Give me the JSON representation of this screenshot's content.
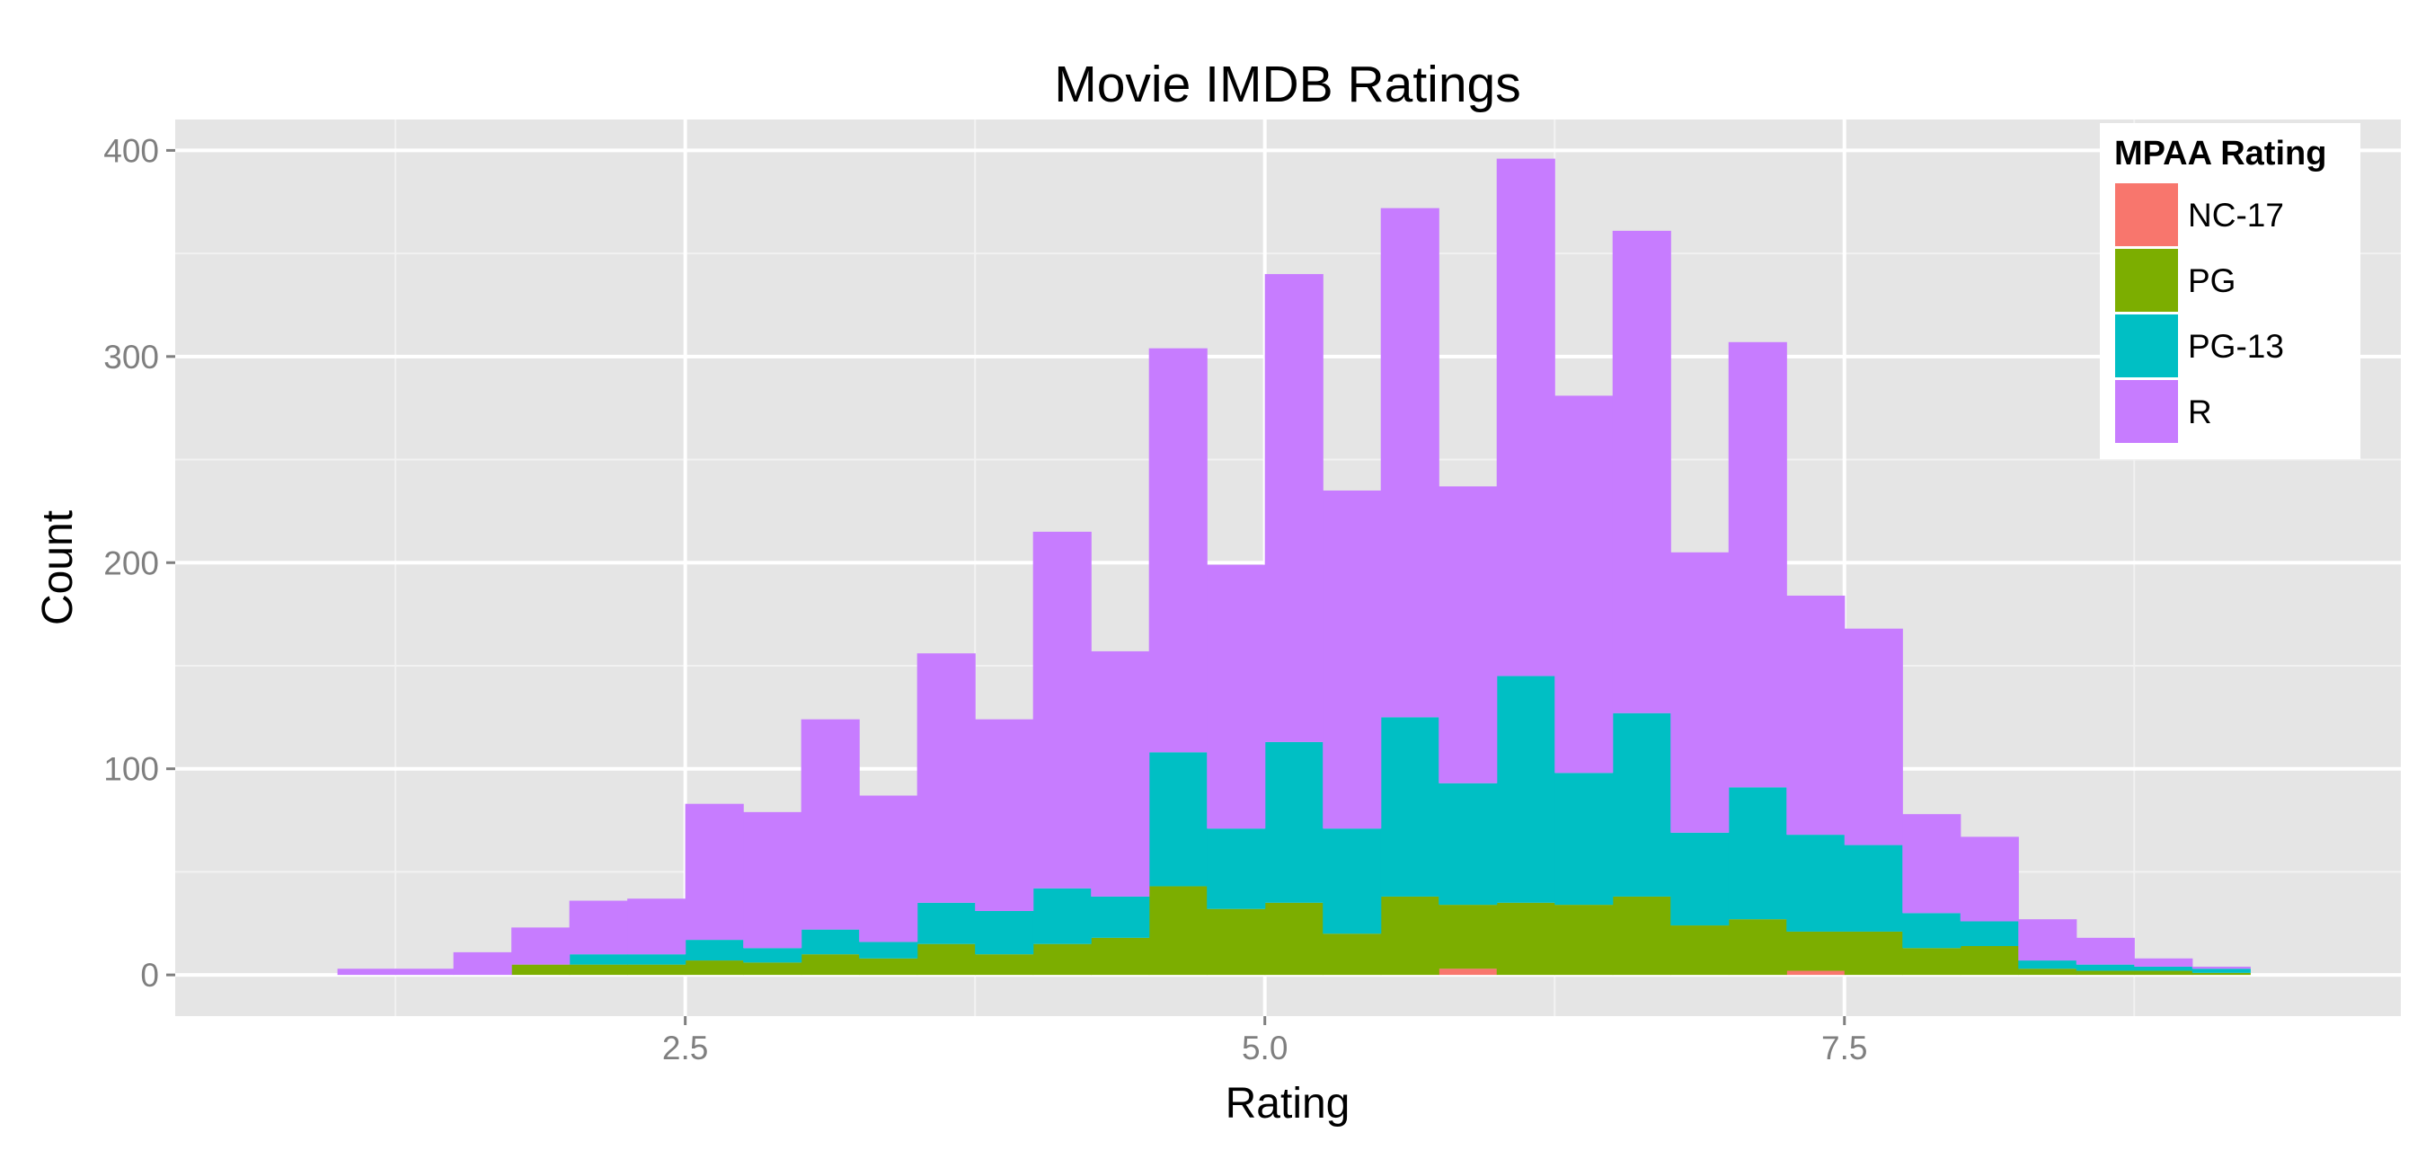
{
  "chart_data": {
    "type": "bar",
    "stacked": true,
    "title": "Movie IMDB Ratings",
    "xlabel": "Rating",
    "ylabel": "Count",
    "xlim": [
      0.3,
      9.9
    ],
    "ylim": [
      -20,
      415
    ],
    "xticks": [
      2.5,
      5.0,
      7.5
    ],
    "xtick_labels": [
      "2.5",
      "5.0",
      "7.5"
    ],
    "yticks": [
      0,
      100,
      200,
      300,
      400
    ],
    "ytick_labels": [
      "0",
      "100",
      "200",
      "300",
      "400"
    ],
    "grid": true,
    "background": "#E5E5E5",
    "legend": {
      "title": "MPAA Rating",
      "position": "top-right"
    },
    "bin_width": 0.25,
    "bin_starts": [
      1.0,
      1.25,
      1.5,
      1.75,
      2.0,
      2.25,
      2.5,
      2.75,
      3.0,
      3.25,
      3.5,
      3.75,
      4.0,
      4.25,
      4.5,
      4.75,
      5.0,
      5.25,
      5.5,
      5.75,
      6.0,
      6.25,
      6.5,
      6.75,
      7.0,
      7.25,
      7.5,
      7.75,
      8.0,
      8.25,
      8.5,
      8.75,
      9.0
    ],
    "series": [
      {
        "name": "NC-17",
        "color": "#F8766D",
        "values": [
          0,
          0,
          0,
          0,
          0,
          0,
          0,
          0,
          0,
          0,
          0,
          0,
          0,
          0,
          0,
          0,
          0,
          0,
          0,
          3,
          0,
          0,
          0,
          0,
          0,
          2,
          0,
          0,
          0,
          0,
          0,
          0,
          0
        ]
      },
      {
        "name": "PG",
        "color": "#7CAE00",
        "values": [
          0,
          0,
          0,
          5,
          5,
          5,
          7,
          6,
          10,
          8,
          15,
          10,
          15,
          18,
          43,
          32,
          35,
          20,
          38,
          31,
          35,
          34,
          38,
          24,
          27,
          19,
          21,
          13,
          14,
          3,
          2,
          2,
          1
        ]
      },
      {
        "name": "PG-13",
        "color": "#00BFC4",
        "values": [
          0,
          0,
          0,
          0,
          5,
          5,
          10,
          7,
          12,
          8,
          20,
          21,
          27,
          20,
          65,
          39,
          78,
          51,
          87,
          59,
          110,
          64,
          89,
          45,
          64,
          47,
          42,
          17,
          12,
          4,
          3,
          2,
          2
        ]
      },
      {
        "name": "R",
        "color": "#C77CFF",
        "values": [
          3,
          3,
          11,
          18,
          26,
          27,
          66,
          66,
          102,
          71,
          121,
          93,
          173,
          119,
          196,
          128,
          227,
          164,
          247,
          144,
          251,
          183,
          234,
          136,
          216,
          116,
          105,
          48,
          41,
          20,
          13,
          4,
          1
        ]
      }
    ]
  }
}
